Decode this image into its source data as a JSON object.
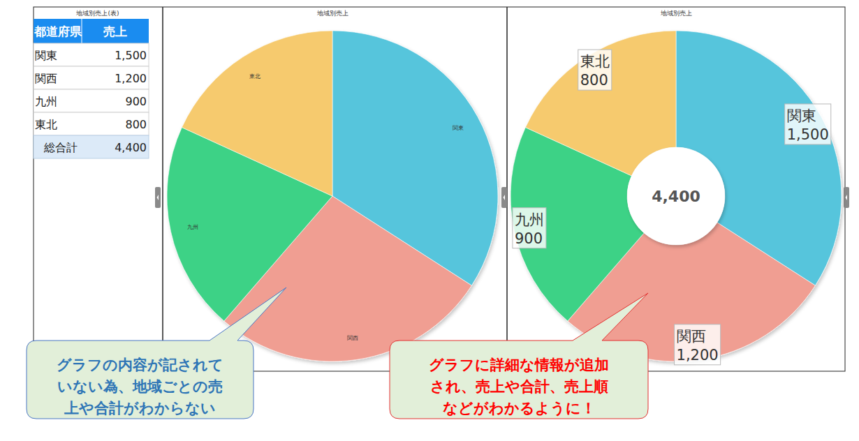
{
  "table": {
    "title": "地域別売上(表)",
    "header": [
      "都道府県",
      "売上"
    ],
    "rows": [
      [
        "関東",
        "1,500"
      ],
      [
        "関西",
        "1,200"
      ],
      [
        "九州",
        "900"
      ],
      [
        "東北",
        "800"
      ]
    ],
    "total": [
      "総合計",
      "4,400"
    ]
  },
  "chart_data": [
    {
      "type": "pie",
      "title": "地域別売上",
      "categories": [
        "関東",
        "関西",
        "九州",
        "東北"
      ],
      "values": [
        1500,
        1200,
        900,
        800
      ],
      "colors": [
        "#56c5dc",
        "#f09e92",
        "#3dd286",
        "#f6ca6e"
      ],
      "data_labels": false
    },
    {
      "type": "donut",
      "title": "地域別売上",
      "categories": [
        "関東",
        "関西",
        "九州",
        "東北"
      ],
      "values": [
        1500,
        1200,
        900,
        800
      ],
      "value_labels": [
        "1,500",
        "1,200",
        "900",
        "800"
      ],
      "colors": [
        "#56c5dc",
        "#f09e92",
        "#3dd286",
        "#f6ca6e"
      ],
      "data_labels": true,
      "total": 4400,
      "total_label": "4,400"
    }
  ],
  "callouts": [
    {
      "lines": [
        "グラフの内容が記されて",
        "いない為、地域ごとの売",
        "上や合計がわからない"
      ]
    },
    {
      "lines": [
        "グラフに詳細な情報が追加",
        "され、売上や合計、売上順",
        "などがわかるように！"
      ]
    }
  ]
}
